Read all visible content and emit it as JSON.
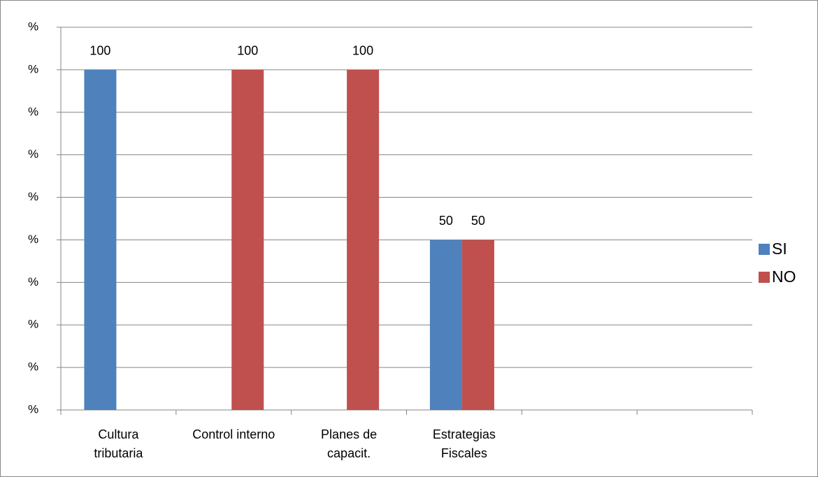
{
  "chart_data": {
    "type": "bar",
    "categories": [
      "Cultura tributaria",
      "Control interno",
      "Planes de capacit.",
      "Estrategias Fiscales",
      null,
      null
    ],
    "series": [
      {
        "name": "SI",
        "color": "#4f81bd",
        "values": [
          100,
          null,
          null,
          50,
          null,
          null
        ]
      },
      {
        "name": "NO",
        "color": "#c0504d",
        "values": [
          null,
          100,
          100,
          50,
          null,
          null
        ]
      }
    ],
    "ylim": [
      0,
      112.5
    ],
    "yticks": [
      {
        "value": 0,
        "label": "%"
      },
      {
        "value": 12.5,
        "label": "%"
      },
      {
        "value": 25,
        "label": "%"
      },
      {
        "value": 37.5,
        "label": "%"
      },
      {
        "value": 50,
        "label": "%"
      },
      {
        "value": 62.5,
        "label": "%"
      },
      {
        "value": 75,
        "label": "%"
      },
      {
        "value": 87.5,
        "label": "%"
      },
      {
        "value": 100,
        "label": "%"
      },
      {
        "value": 112.5,
        "label": "%"
      }
    ],
    "grid": true,
    "legend": "right"
  }
}
